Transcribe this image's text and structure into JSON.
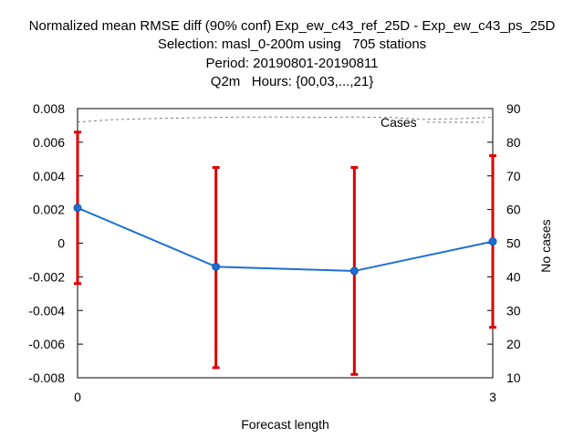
{
  "title_lines": [
    "Normalized mean RMSE diff (90% conf) Exp_ew_c43_ref_25D - Exp_ew_c43_ps_25D",
    "Selection: masl_0-200m using   705 stations",
    "Period: 20190801-20190811",
    "Q2m   Hours: {00,03,...,21}"
  ],
  "chart_data": {
    "type": "line",
    "xlabel": "Forecast length",
    "ylabel_right": "No cases",
    "x_ticks": [
      "0",
      "3"
    ],
    "xlim": [
      0,
      3
    ],
    "ylim": [
      -0.008,
      0.008
    ],
    "y_ticks": [
      "0.008",
      "0.006",
      "0.004",
      "0.002",
      "0",
      "-0.002",
      "-0.004",
      "-0.006",
      "-0.008"
    ],
    "y2lim": [
      10,
      90
    ],
    "y2_ticks": [
      "90",
      "80",
      "70",
      "60",
      "50",
      "40",
      "30",
      "20",
      "10"
    ],
    "series": [
      {
        "x": [
          0,
          1,
          2,
          3
        ],
        "values": [
          0.0021,
          -0.0014,
          -0.00165,
          0.0001
        ],
        "err_low": [
          -0.0024,
          -0.0074,
          -0.0078,
          -0.005
        ],
        "err_high": [
          0.0066,
          0.0045,
          0.0045,
          0.0052
        ],
        "color": "#1a6fd4",
        "err_color": "#dd0000"
      },
      {
        "name": "Cases",
        "axis": "right",
        "x": [
          0,
          0.25,
          0.5,
          0.75,
          1,
          1.25,
          1.5,
          1.75,
          2,
          2.25,
          2.5,
          2.75,
          3
        ],
        "values": [
          86,
          86.7,
          87,
          87.2,
          87.4,
          87.5,
          87.5,
          87.4,
          87.5,
          87.4,
          86.8,
          87,
          87.4
        ],
        "color": "#808080",
        "style": "dashed"
      }
    ],
    "legend_position": "top-right",
    "grid": false
  }
}
